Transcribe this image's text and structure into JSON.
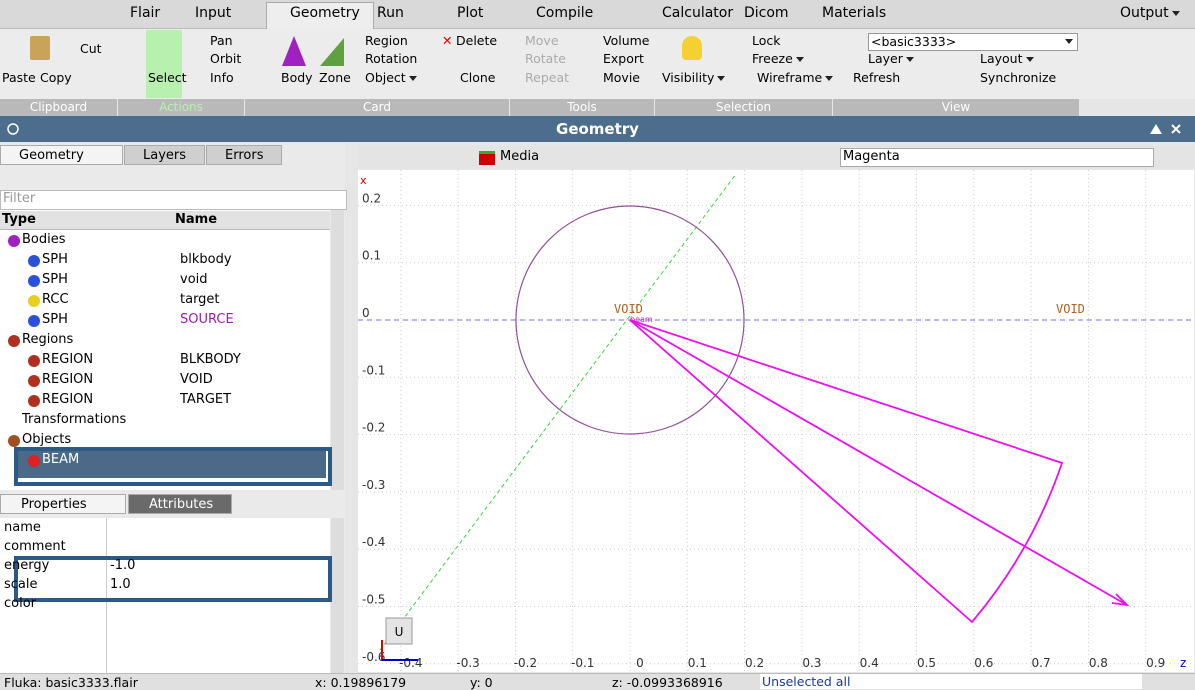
{
  "menu": {
    "tabs": [
      "Flair",
      "Input",
      "Geometry",
      "Run",
      "Plot",
      "Compile",
      "Calculator",
      "Dicom",
      "Materials"
    ],
    "output": "Output"
  },
  "ribbon": {
    "paste": "Paste",
    "cut": "Cut",
    "copy": "Copy",
    "select": "Select",
    "pan": "Pan",
    "orbit": "Orbit",
    "info": "Info",
    "body": "Body",
    "zone": "Zone",
    "region": "Region",
    "delete": "Delete",
    "rotation": "Rotation",
    "object": "Object",
    "clone": "Clone",
    "move": "Move",
    "rotate": "Rotate",
    "repeat": "Repeat",
    "volume": "Volume",
    "export": "Export",
    "movie": "Movie",
    "visibility": "Visibility",
    "wireframe": "Wireframe",
    "lock": "Lock",
    "freeze": "Freeze",
    "refresh": "Refresh",
    "basic": "<basic3333>",
    "layer": "Layer",
    "layout": "Layout",
    "synchronize": "Synchronize",
    "groups": [
      "Clipboard",
      "Actions",
      "Card",
      "Tools",
      "Selection",
      "View"
    ]
  },
  "panel_title": "Geometry",
  "left": {
    "tabs": [
      "Geometry",
      "Layers",
      "Errors"
    ],
    "filter": "Filter",
    "columns": [
      "Type",
      "Name"
    ],
    "tree": [
      {
        "type": "Bodies"
      },
      {
        "type": "SPH",
        "name": "blkbody"
      },
      {
        "type": "SPH",
        "name": "void"
      },
      {
        "type": "RCC",
        "name": "target"
      },
      {
        "type": "SPH",
        "name": "SOURCE"
      },
      {
        "type": "Regions"
      },
      {
        "type": "REGION",
        "name": "BLKBODY"
      },
      {
        "type": "REGION",
        "name": "VOID"
      },
      {
        "type": "REGION",
        "name": "TARGET"
      },
      {
        "type": "Transformations"
      },
      {
        "type": "Objects"
      },
      {
        "type": "BEAM"
      }
    ]
  },
  "properties": {
    "tabs": [
      "Properties",
      "Attributes"
    ],
    "rows": [
      {
        "key": "name"
      },
      {
        "key": "comment"
      },
      {
        "key": "energy",
        "value": "-1.0"
      },
      {
        "key": "scale",
        "value": "1.0"
      },
      {
        "key": "color"
      }
    ]
  },
  "viewport": {
    "layer": "Media",
    "color": "Magenta",
    "x_label": "x",
    "z_label": "z",
    "u": "U",
    "region_labels": [
      "VOID",
      "VOID"
    ],
    "beam_label": "beam",
    "v_ticks": [
      0.2,
      0.1,
      0,
      -0.1,
      -0.2,
      -0.3,
      -0.4,
      -0.5,
      -0.6
    ],
    "h_ticks": [
      -0.4,
      -0.3,
      -0.2,
      -0.1,
      0,
      0.1,
      0.2,
      0.3,
      0.4,
      0.5,
      0.6,
      0.7,
      0.8,
      0.9
    ]
  },
  "status": {
    "file": "Fluka: basic3333.flair",
    "x": "x: 0.19896179",
    "y": "y: 0",
    "z": "z: -0.0993368916",
    "message": "Unselected all"
  }
}
